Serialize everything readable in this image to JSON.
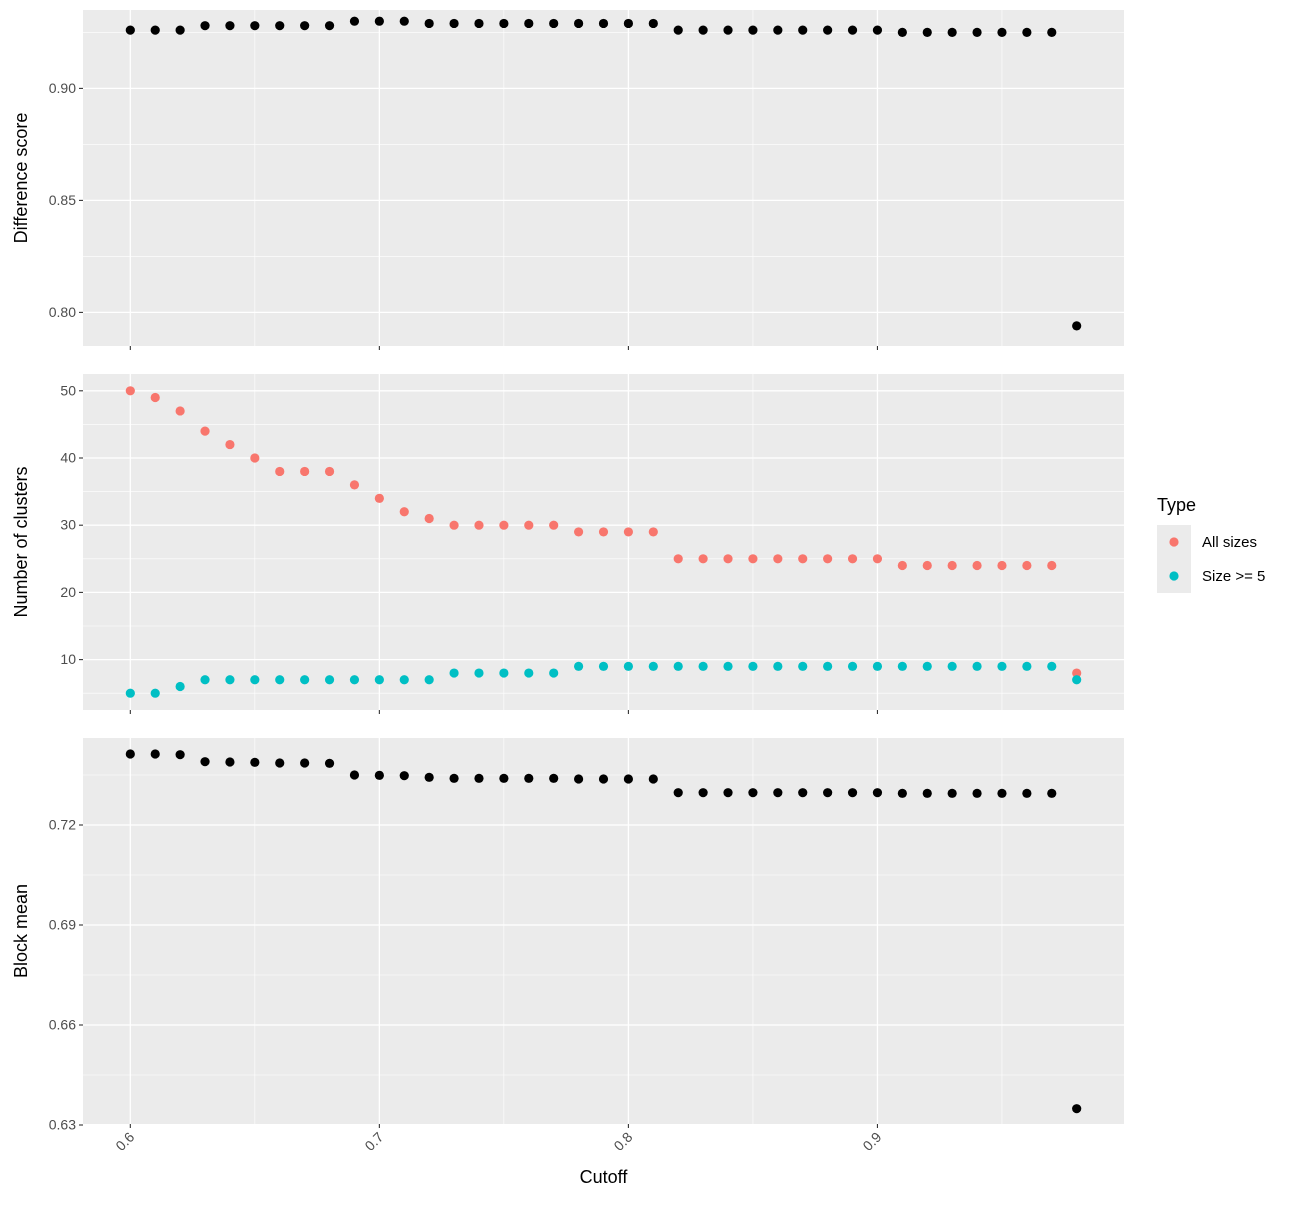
{
  "chart_data": [
    {
      "type": "scatter",
      "panel": "top",
      "xlabel": "",
      "ylabel": "Difference score",
      "ylim": [
        0.785,
        0.935
      ],
      "yticks": [
        0.8,
        0.85,
        0.9
      ],
      "ytick_labels": [
        "0.80",
        "0.85",
        "0.90"
      ],
      "x": [
        0.6,
        0.61,
        0.62,
        0.63,
        0.64,
        0.65,
        0.66,
        0.67,
        0.68,
        0.69,
        0.7,
        0.71,
        0.72,
        0.73,
        0.74,
        0.75,
        0.76,
        0.77,
        0.78,
        0.79,
        0.8,
        0.81,
        0.82,
        0.83,
        0.84,
        0.85,
        0.86,
        0.87,
        0.88,
        0.89,
        0.9,
        0.91,
        0.92,
        0.93,
        0.94,
        0.95,
        0.96,
        0.97,
        0.98
      ],
      "series": [
        {
          "color": "#000000",
          "y": [
            0.926,
            0.926,
            0.926,
            0.928,
            0.928,
            0.928,
            0.928,
            0.928,
            0.928,
            0.93,
            0.93,
            0.93,
            0.929,
            0.929,
            0.929,
            0.929,
            0.929,
            0.929,
            0.929,
            0.929,
            0.929,
            0.929,
            0.926,
            0.926,
            0.926,
            0.926,
            0.926,
            0.926,
            0.926,
            0.926,
            0.926,
            0.925,
            0.925,
            0.925,
            0.925,
            0.925,
            0.925,
            0.925,
            0.794
          ]
        }
      ],
      "grid": true
    },
    {
      "type": "scatter",
      "panel": "middle",
      "xlabel": "",
      "ylabel": "Number of clusters",
      "ylim": [
        2.5,
        52.5
      ],
      "yticks": [
        10,
        20,
        30,
        40,
        50
      ],
      "ytick_labels": [
        "10",
        "20",
        "30",
        "40",
        "50"
      ],
      "x": [
        0.6,
        0.61,
        0.62,
        0.63,
        0.64,
        0.65,
        0.66,
        0.67,
        0.68,
        0.69,
        0.7,
        0.71,
        0.72,
        0.73,
        0.74,
        0.75,
        0.76,
        0.77,
        0.78,
        0.79,
        0.8,
        0.81,
        0.82,
        0.83,
        0.84,
        0.85,
        0.86,
        0.87,
        0.88,
        0.89,
        0.9,
        0.91,
        0.92,
        0.93,
        0.94,
        0.95,
        0.96,
        0.97,
        0.98
      ],
      "series": [
        {
          "name": "All sizes",
          "color": "#F8766D",
          "y": [
            50,
            49,
            47,
            44,
            42,
            40,
            38,
            38,
            38,
            36,
            34,
            32,
            31,
            30,
            30,
            30,
            30,
            30,
            29,
            29,
            29,
            29,
            25,
            25,
            25,
            25,
            25,
            25,
            25,
            25,
            25,
            24,
            24,
            24,
            24,
            24,
            24,
            24,
            8
          ]
        },
        {
          "name": "Size >= 5",
          "color": "#00BFC4",
          "y": [
            5,
            5,
            6,
            7,
            7,
            7,
            7,
            7,
            7,
            7,
            7,
            7,
            7,
            8,
            8,
            8,
            8,
            8,
            9,
            9,
            9,
            9,
            9,
            9,
            9,
            9,
            9,
            9,
            9,
            9,
            9,
            9,
            9,
            9,
            9,
            9,
            9,
            9,
            7
          ]
        }
      ],
      "legend": {
        "title": "Type",
        "position": "right",
        "entries": [
          "All sizes",
          "Size >= 5"
        ]
      },
      "grid": true
    },
    {
      "type": "scatter",
      "panel": "bottom",
      "xlabel": "Cutoff",
      "ylabel": "Block mean",
      "ylim": [
        0.6303,
        0.7461
      ],
      "yticks": [
        0.63,
        0.66,
        0.69,
        0.72
      ],
      "ytick_labels": [
        "0.63",
        "0.66",
        "0.69",
        "0.72"
      ],
      "xticks": [
        0.6,
        0.7,
        0.8,
        0.9
      ],
      "xtick_labels": [
        "0.6",
        "0.7",
        "0.8",
        "0.9"
      ],
      "x": [
        0.6,
        0.61,
        0.62,
        0.63,
        0.64,
        0.65,
        0.66,
        0.67,
        0.68,
        0.69,
        0.7,
        0.71,
        0.72,
        0.73,
        0.74,
        0.75,
        0.76,
        0.77,
        0.78,
        0.79,
        0.8,
        0.81,
        0.82,
        0.83,
        0.84,
        0.85,
        0.86,
        0.87,
        0.88,
        0.89,
        0.9,
        0.91,
        0.92,
        0.93,
        0.94,
        0.95,
        0.96,
        0.97,
        0.98
      ],
      "series": [
        {
          "color": "#000000",
          "y": [
            0.7413,
            0.7413,
            0.7411,
            0.739,
            0.7389,
            0.7388,
            0.7386,
            0.7386,
            0.7385,
            0.735,
            0.7349,
            0.7348,
            0.7343,
            0.734,
            0.734,
            0.734,
            0.734,
            0.734,
            0.7338,
            0.7338,
            0.7338,
            0.7338,
            0.7297,
            0.7297,
            0.7297,
            0.7297,
            0.7297,
            0.7297,
            0.7297,
            0.7297,
            0.7297,
            0.7295,
            0.7295,
            0.7295,
            0.7295,
            0.7295,
            0.7295,
            0.7295,
            0.6349
          ]
        }
      ],
      "grid": true
    }
  ]
}
